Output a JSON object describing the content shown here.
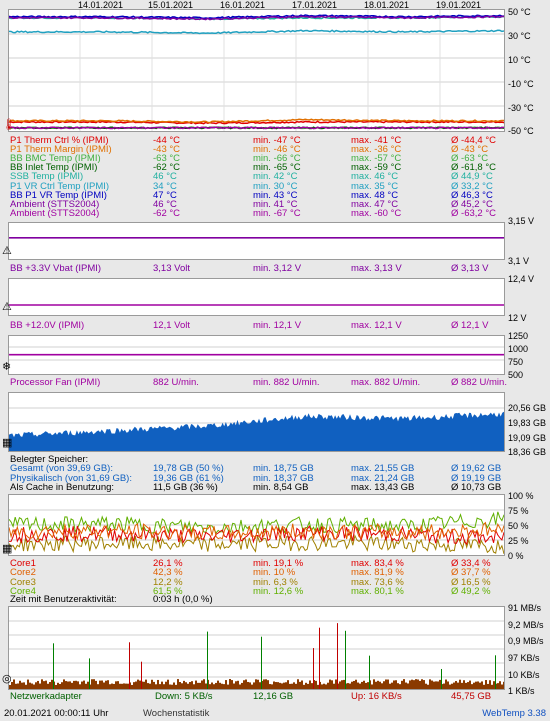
{
  "dates": [
    "14.01.2021",
    "15.01.2021",
    "16.01.2021",
    "17.01.2021",
    "18.01.2021",
    "19.01.2021"
  ],
  "temp": {
    "axis": [
      "50 °C",
      "30 °C",
      "10 °C",
      "-10 °C",
      "-30 °C",
      "-50 °C"
    ],
    "rows": [
      {
        "label": "P1 Therm Ctrl % (IPMI)",
        "cur": "-44 °C",
        "min": "min. -47 °C",
        "max": "max. -41 °C",
        "avg": "Ø -44,4 °C",
        "color": "#e00000"
      },
      {
        "label": "P1 Therm Margin (IPMI)",
        "cur": "-43 °C",
        "min": "min. -46 °C",
        "max": "max. -36 °C",
        "avg": "Ø -43 °C",
        "color": "#e07000"
      },
      {
        "label": "BB BMC Temp (IPMI)",
        "cur": "-63 °C",
        "min": "min. -66 °C",
        "max": "max. -57 °C",
        "avg": "Ø -63 °C",
        "color": "#40b040"
      },
      {
        "label": "BB Inlet Temp (IPMI)",
        "cur": "-62 °C",
        "min": "min. -65 °C",
        "max": "max. -59 °C",
        "avg": "Ø -61,8 °C",
        "color": "#006000"
      },
      {
        "label": "SSB Temp (IPMI)",
        "cur": "46 °C",
        "min": "min. 42 °C",
        "max": "max. 46 °C",
        "avg": "Ø 44,9 °C",
        "color": "#20b0a0"
      },
      {
        "label": "P1 VR Ctrl Temp (IPMI)",
        "cur": "34 °C",
        "min": "min. 30 °C",
        "max": "max. 35 °C",
        "avg": "Ø 33,2 °C",
        "color": "#20a0c0"
      },
      {
        "label": "BB P1 VR Temp (IPMI)",
        "cur": "47 °C",
        "min": "min. 43 °C",
        "max": "max. 48 °C",
        "avg": "Ø 46,3 °C",
        "color": "#0000c0"
      },
      {
        "label": "Ambient (STTS2004)",
        "cur": "46 °C",
        "min": "min. 41 °C",
        "max": "max. 47 °C",
        "avg": "Ø 45,2 °C",
        "color": "#8000a0"
      },
      {
        "label": "Ambient (STTS2004)",
        "cur": "-62 °C",
        "min": "min. -67 °C",
        "max": "max. -60 °C",
        "avg": "Ø -63,2 °C",
        "color": "#a000a0"
      }
    ]
  },
  "vbat": {
    "axis": [
      "3,15 V",
      "3,1 V"
    ],
    "label": "BB +3.3V Vbat (IPMI)",
    "cur": "3,13 Volt",
    "min": "min. 3,12 V",
    "max": "max. 3,13 V",
    "avg": "Ø 3,13 V",
    "color": "#8000a0"
  },
  "v12": {
    "axis": [
      "12,4 V",
      "12 V"
    ],
    "label": "BB +12.0V (IPMI)",
    "cur": "12,1 Volt",
    "min": "min. 12,1 V",
    "max": "max. 12,1 V",
    "avg": "Ø 12,1 V",
    "color": "#a000a0"
  },
  "fan": {
    "axis": [
      "1250",
      "1000",
      "750",
      "500"
    ],
    "label": "Processor Fan (IPMI)",
    "cur": "882 U/min.",
    "min": "min. 882 U/min.",
    "max": "max. 882 U/min.",
    "avg": "Ø 882 U/min.",
    "color": "#a000a0"
  },
  "mem": {
    "axis": [
      "20,56 GB",
      "19,83 GB",
      "19,09 GB",
      "18,36 GB"
    ],
    "title": "Belegter Speicher:",
    "rows": [
      {
        "label": "Gesamt (von 39,69 GB):",
        "cur": "19,78 GB (50 %)",
        "min": "min. 18,75 GB",
        "max": "max. 21,55 GB",
        "avg": "Ø 19,62 GB",
        "color": "#1060c0"
      },
      {
        "label": "Physikalisch (von 31,69 GB):",
        "cur": "19,36 GB (61 %)",
        "min": "min. 18,37 GB",
        "max": "max. 21,24 GB",
        "avg": "Ø 19,19 GB",
        "color": "#1060c0"
      },
      {
        "label": "Als Cache in Benutzung:",
        "cur": "11,5 GB (36 %)",
        "min": "min. 8,54 GB",
        "max": "max. 13,43 GB",
        "avg": "Ø 10,73 GB",
        "color": "#000000"
      }
    ]
  },
  "cpu": {
    "axis": [
      "100 %",
      "75 %",
      "50 %",
      "25 %",
      "0 %"
    ],
    "rows": [
      {
        "label": "Core1",
        "cur": "26,1 %",
        "min": "min. 19,1 %",
        "max": "max. 83,4 %",
        "avg": "Ø 33,4 %",
        "color": "#e00000"
      },
      {
        "label": "Core2",
        "cur": "42,3 %",
        "min": "min. 10 %",
        "max": "max. 81,9 %",
        "avg": "Ø 37,7 %",
        "color": "#e06000"
      },
      {
        "label": "Core3",
        "cur": "12,2 %",
        "min": "min. 6,3 %",
        "max": "max. 73,6 %",
        "avg": "Ø 16,5 %",
        "color": "#a08000"
      },
      {
        "label": "Core4",
        "cur": "61,5 %",
        "min": "min. 12,6 %",
        "max": "max. 80,1 %",
        "avg": "Ø 49,2 %",
        "color": "#60b000"
      }
    ],
    "activity_label": "Zeit mit Benutzeraktivität:",
    "activity_value": "0:03 h (0,0 %)"
  },
  "net": {
    "axis": [
      "91 MB/s",
      "9,2 MB/s",
      "0,9 MB/s",
      "97 KB/s",
      "10 KB/s",
      "1 KB/s"
    ],
    "label": "Netzwerkadapter",
    "down": "Down: 5 KB/s",
    "down_total": "12,16 GB",
    "up": "Up: 16 KB/s",
    "up_total": "45,75 GB"
  },
  "footer": {
    "timestamp": "20.01.2021 00:00:11 Uhr",
    "stats": "Wochenstatistik",
    "brand": "WebTemp 3.38"
  },
  "chart_data": [
    {
      "type": "line",
      "title": "",
      "x": [
        "14.01.2021",
        "15.01.2021",
        "16.01.2021",
        "17.01.2021",
        "18.01.2021",
        "19.01.2021"
      ],
      "ylim": [
        -50,
        50
      ],
      "series": [
        {
          "name": "P1 Therm Ctrl % (IPMI)",
          "values": [
            -44,
            -44,
            -45,
            -44,
            -44,
            -44
          ]
        },
        {
          "name": "P1 Therm Margin (IPMI)",
          "values": [
            -43,
            -43,
            -44,
            -42,
            -43,
            -43
          ]
        },
        {
          "name": "BB BMC Temp (IPMI)",
          "values": [
            -63,
            -63,
            -64,
            -62,
            -63,
            -63
          ]
        },
        {
          "name": "BB Inlet Temp (IPMI)",
          "values": [
            -62,
            -62,
            -63,
            -61,
            -62,
            -62
          ]
        },
        {
          "name": "SSB Temp (IPMI)",
          "values": [
            45,
            45,
            44,
            45,
            45,
            46
          ]
        },
        {
          "name": "P1 VR Ctrl Temp (IPMI)",
          "values": [
            33,
            33,
            32,
            34,
            33,
            34
          ]
        },
        {
          "name": "BB P1 VR Temp (IPMI)",
          "values": [
            46,
            46,
            45,
            47,
            46,
            47
          ]
        },
        {
          "name": "Ambient (STTS2004)",
          "values": [
            45,
            45,
            44,
            46,
            45,
            46
          ]
        },
        {
          "name": "Ambient (STTS2004)",
          "values": [
            -63,
            -63,
            -64,
            -62,
            -63,
            -62
          ]
        }
      ]
    },
    {
      "type": "line",
      "series": [
        {
          "name": "BB +3.3V Vbat (IPMI)",
          "values": [
            3.13,
            3.13,
            3.13,
            3.13,
            3.13,
            3.13
          ]
        }
      ],
      "ylim": [
        3.1,
        3.15
      ]
    },
    {
      "type": "line",
      "series": [
        {
          "name": "BB +12.0V (IPMI)",
          "values": [
            12.1,
            12.1,
            12.1,
            12.1,
            12.1,
            12.1
          ]
        }
      ],
      "ylim": [
        12,
        12.4
      ]
    },
    {
      "type": "line",
      "series": [
        {
          "name": "Processor Fan (IPMI)",
          "values": [
            882,
            882,
            882,
            882,
            882,
            882
          ]
        }
      ],
      "ylim": [
        500,
        1250
      ]
    },
    {
      "type": "area",
      "series": [
        {
          "name": "Gesamt (von 39,69 GB):",
          "values": [
            18.9,
            19.1,
            19.3,
            19.7,
            19.6,
            19.8
          ]
        }
      ],
      "ylim": [
        18.36,
        20.56
      ]
    },
    {
      "type": "line",
      "series": [
        {
          "name": "Core1",
          "values": [
            33,
            35,
            30,
            36,
            33,
            26
          ]
        },
        {
          "name": "Core2",
          "values": [
            38,
            40,
            35,
            39,
            37,
            42
          ]
        },
        {
          "name": "Core3",
          "values": [
            16,
            17,
            15,
            18,
            16,
            12
          ]
        },
        {
          "name": "Core4",
          "values": [
            50,
            52,
            46,
            51,
            48,
            61
          ]
        }
      ],
      "ylim": [
        0,
        100
      ]
    },
    {
      "type": "bar",
      "series": [
        {
          "name": "Netzwerkadapter"
        }
      ]
    }
  ]
}
